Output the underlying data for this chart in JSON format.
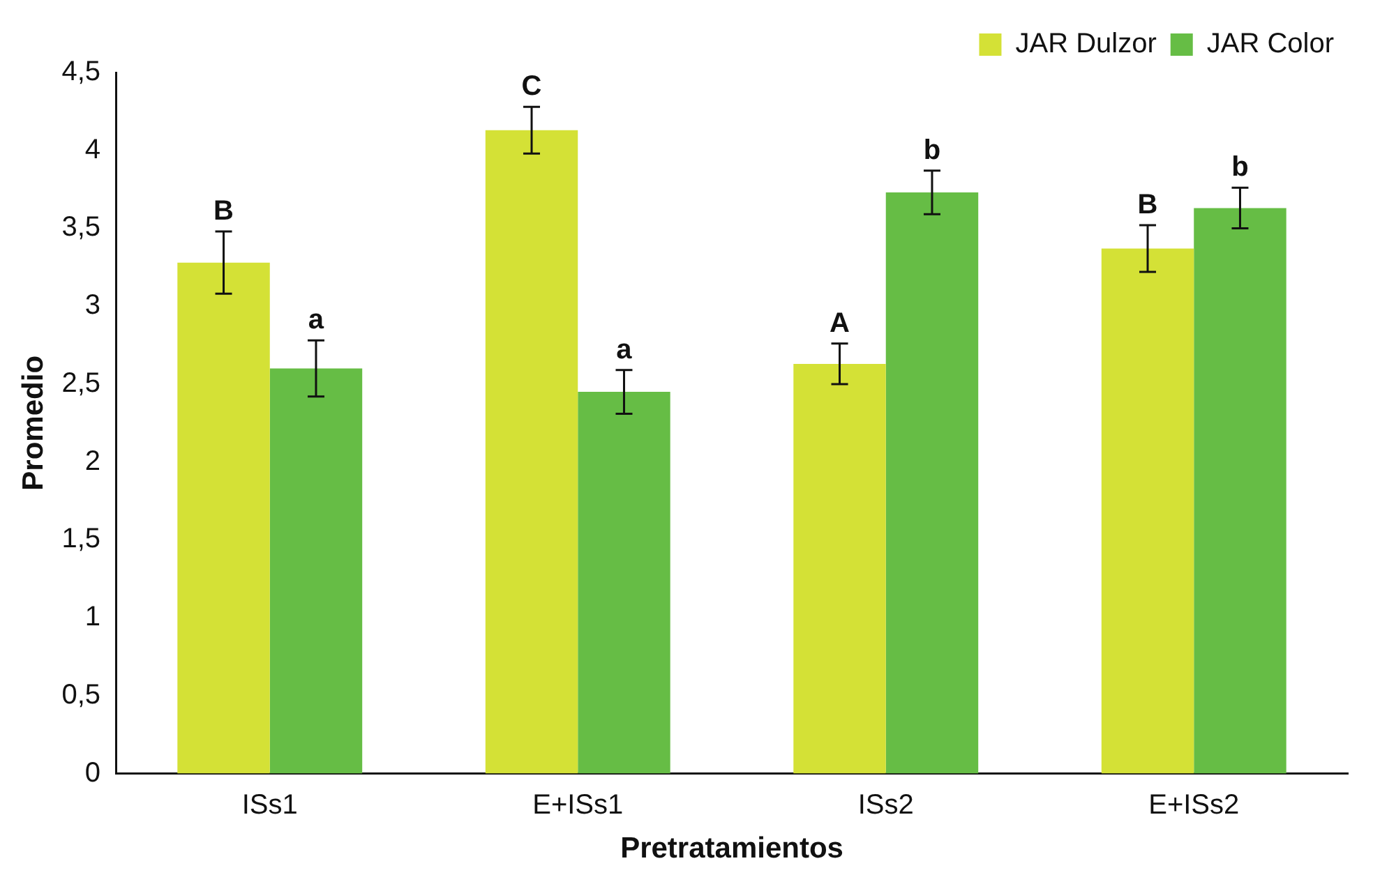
{
  "chart_data": {
    "type": "bar",
    "xlabel": "Pretratamientos",
    "ylabel": "Promedio",
    "categories": [
      "ISs1",
      "E+ISs1",
      "ISs2",
      "E+ISs2"
    ],
    "series": [
      {
        "name": "JAR Dulzor",
        "color": "#d4e136",
        "values": [
          3.28,
          4.13,
          2.63,
          3.37
        ],
        "errors": [
          0.2,
          0.15,
          0.13,
          0.15
        ]
      },
      {
        "name": "JAR Color",
        "color": "#66bd45",
        "values": [
          2.6,
          2.45,
          3.73,
          3.63
        ],
        "errors": [
          0.18,
          0.14,
          0.14,
          0.13
        ]
      }
    ],
    "ylim": [
      0,
      4.5
    ],
    "yticks": [
      0,
      {
        "value": 0.5,
        "label": "0,5"
      },
      1,
      {
        "value": 1.5,
        "label": "1,5"
      },
      2,
      {
        "value": 2.5,
        "label": "2,5"
      },
      3,
      {
        "value": 3.5,
        "label": "3,5"
      },
      4,
      {
        "value": 4.5,
        "label": "4,5"
      }
    ],
    "grid": false,
    "legend": "top right",
    "annotations": [
      "B",
      "a",
      "C",
      "a",
      "A",
      "b",
      "B",
      "b"
    ]
  }
}
